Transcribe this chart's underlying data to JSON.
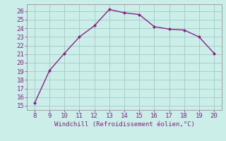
{
  "x": [
    8,
    9,
    10,
    11,
    12,
    13,
    14,
    15,
    16,
    17,
    18,
    19,
    20
  ],
  "y": [
    15.3,
    19.1,
    21.1,
    23.0,
    24.3,
    26.2,
    25.8,
    25.6,
    24.2,
    23.9,
    23.8,
    23.0,
    21.1
  ],
  "line_color": "#882288",
  "marker": "D",
  "marker_size": 2.0,
  "background_color": "#cceee8",
  "grid_color": "#aacccc",
  "xlabel": "Windchill (Refroidissement éolien,°C)",
  "xlabel_color": "#882288",
  "tick_color": "#882288",
  "spine_color": "#888888",
  "xlim": [
    7.5,
    20.5
  ],
  "ylim": [
    14.5,
    26.8
  ],
  "xticks": [
    8,
    9,
    10,
    11,
    12,
    13,
    14,
    15,
    16,
    17,
    18,
    19,
    20
  ],
  "yticks": [
    15,
    16,
    17,
    18,
    19,
    20,
    21,
    22,
    23,
    24,
    25,
    26
  ],
  "tick_fontsize": 6.5,
  "label_fontsize": 6.5,
  "linewidth": 1.0
}
